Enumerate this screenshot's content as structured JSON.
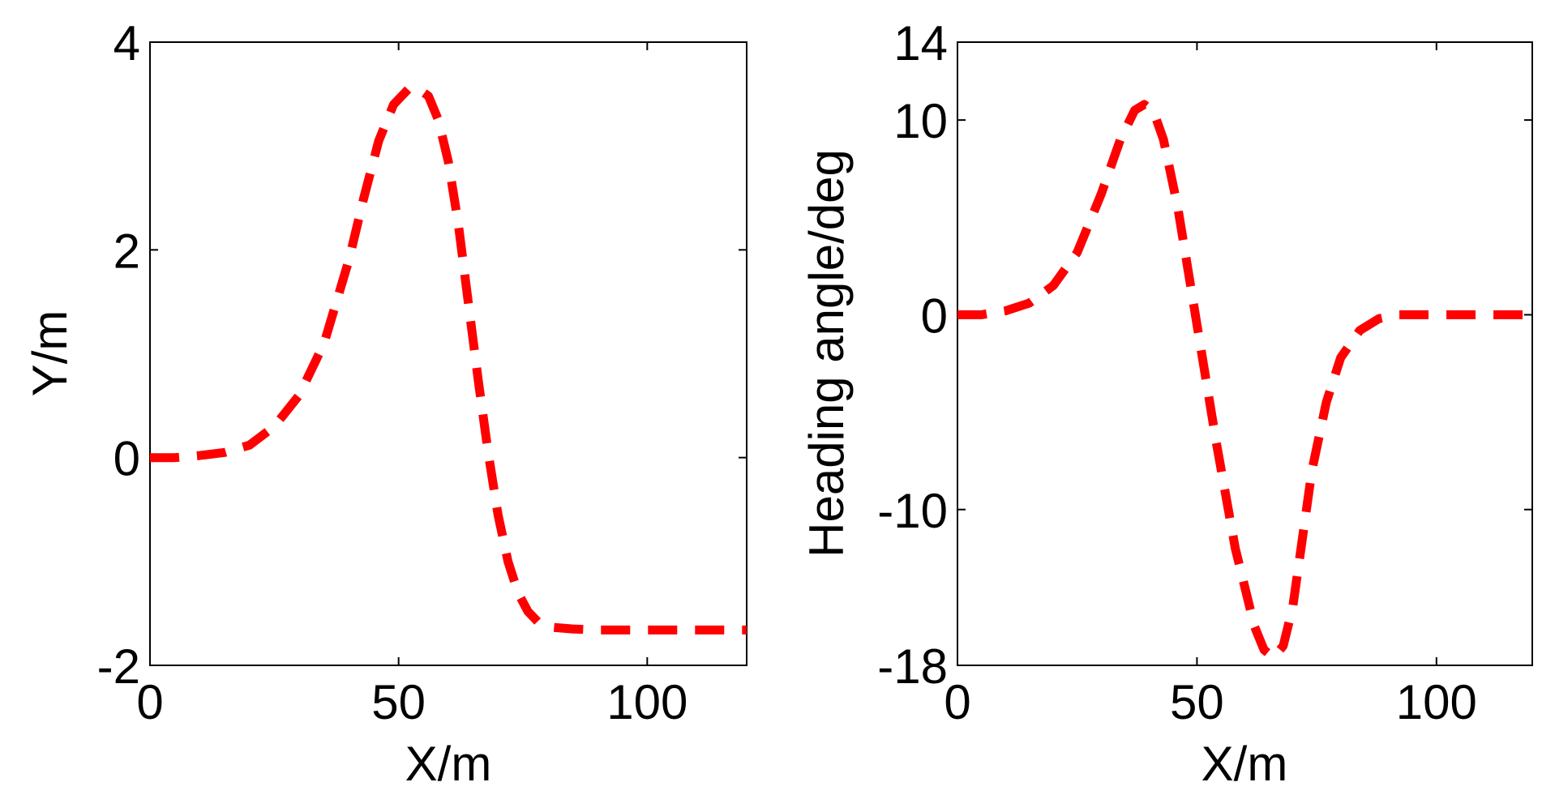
{
  "series_color": "#ff0000",
  "chart_data": [
    {
      "type": "line",
      "title": "",
      "xlabel": "X/m",
      "ylabel": "Y/m",
      "xlim": [
        0,
        120
      ],
      "ylim": [
        -2,
        4
      ],
      "xticks": [
        0,
        50,
        100
      ],
      "xtick_labels": [
        "0",
        "50",
        "100"
      ],
      "yticks": [
        -2,
        0,
        2,
        4
      ],
      "ytick_labels": [
        "-2",
        "0",
        "2",
        "4"
      ],
      "grid": false,
      "legend": false,
      "line_style": "dashed",
      "series": [
        {
          "x": [
            0,
            5,
            10,
            15,
            20,
            25,
            30,
            35,
            40,
            43,
            46,
            49,
            52,
            54,
            56,
            58,
            60,
            62,
            64,
            66,
            68,
            70,
            72,
            74,
            76,
            78,
            80,
            85,
            90,
            95,
            100,
            110,
            120
          ],
          "y": [
            0,
            0,
            0.02,
            0.05,
            0.12,
            0.3,
            0.6,
            1.1,
            1.9,
            2.5,
            3.05,
            3.4,
            3.55,
            3.55,
            3.48,
            3.25,
            2.85,
            2.25,
            1.5,
            0.75,
            0.05,
            -0.55,
            -1.0,
            -1.3,
            -1.48,
            -1.58,
            -1.63,
            -1.65,
            -1.66,
            -1.66,
            -1.66,
            -1.66,
            -1.66
          ]
        }
      ]
    },
    {
      "type": "line",
      "title": "",
      "xlabel": "X/m",
      "ylabel": "Heading angle/deg",
      "xlim": [
        0,
        120
      ],
      "ylim": [
        -18,
        14
      ],
      "xticks": [
        0,
        50,
        100
      ],
      "xtick_labels": [
        "0",
        "50",
        "100"
      ],
      "yticks": [
        -18,
        -10,
        0,
        10,
        14
      ],
      "ytick_labels": [
        "-18",
        "-10",
        "0",
        "10",
        "14"
      ],
      "grid": false,
      "legend": false,
      "line_style": "dashed",
      "series": [
        {
          "x": [
            0,
            5,
            10,
            15,
            20,
            25,
            30,
            34,
            37,
            39,
            41,
            43,
            46,
            50,
            54,
            58,
            62,
            64,
            66,
            68,
            70,
            72,
            74,
            77,
            80,
            84,
            88,
            92,
            96,
            100,
            110,
            120
          ],
          "y": [
            0,
            0,
            0.2,
            0.6,
            1.5,
            3.2,
            6.2,
            9.0,
            10.5,
            10.8,
            10.4,
            9.0,
            5.5,
            -0.5,
            -6.5,
            -12.0,
            -16.0,
            -17.2,
            -17.6,
            -17.0,
            -15.0,
            -11.5,
            -8.0,
            -4.5,
            -2.2,
            -0.8,
            -0.2,
            0,
            0,
            0,
            0,
            0
          ]
        }
      ]
    }
  ]
}
